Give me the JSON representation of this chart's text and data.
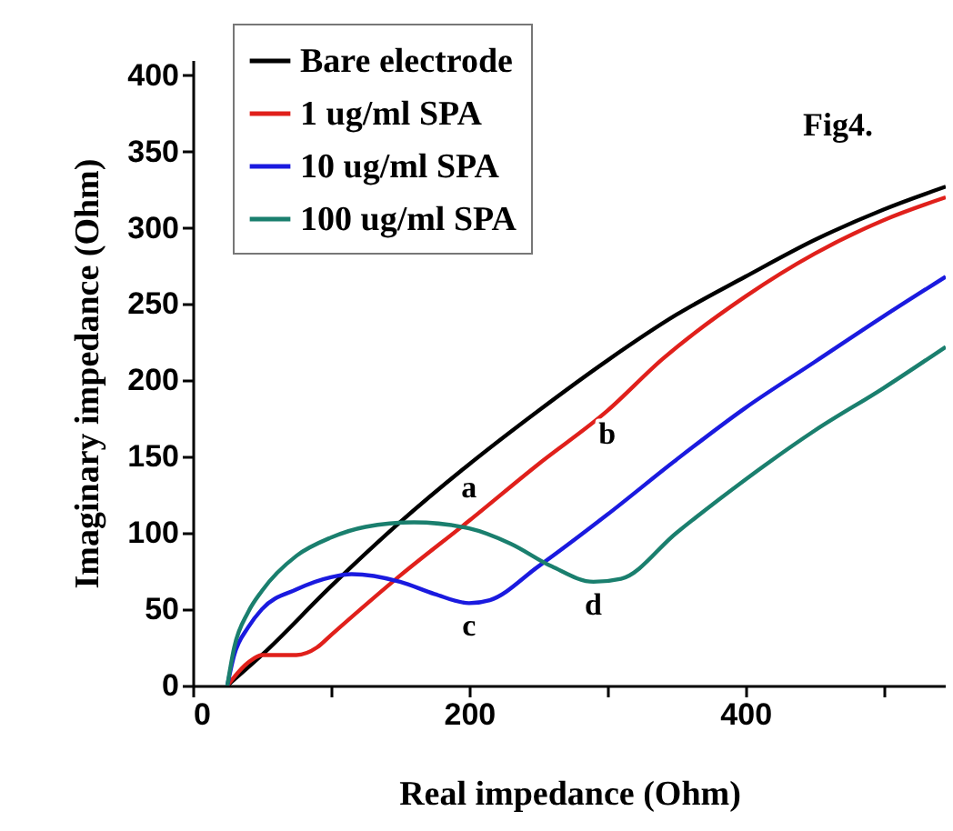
{
  "chart_data": {
    "type": "line",
    "xlabel": "Real impedance (Ohm)",
    "ylabel": "Imaginary impedance (Ohm)",
    "xlim": [
      0,
      545
    ],
    "ylim": [
      0,
      410
    ],
    "xticks": [
      0,
      {
        "value": 100,
        "label": null
      },
      200,
      {
        "value": 300,
        "label": null
      },
      400,
      {
        "value": 500,
        "label": null
      }
    ],
    "yticks": [
      0,
      50,
      100,
      150,
      200,
      250,
      300,
      350,
      400
    ],
    "legend": "top left",
    "grid": false,
    "line_style": "solid",
    "marker": "none",
    "annotations": [
      "Fig4.",
      {
        "text": "a",
        "x": 200,
        "y": 145
      },
      {
        "text": "b",
        "x": 300,
        "y": 180
      },
      {
        "text": "c",
        "x": 200,
        "y": 54
      },
      {
        "text": "d",
        "x": 290,
        "y": 68
      }
    ],
    "series": [
      {
        "name": "Bare electrode",
        "color": "#000000",
        "x": [
          25,
          50,
          100,
          150,
          200,
          250,
          300,
          350,
          400,
          450,
          500,
          545
        ],
        "values": [
          0,
          20,
          65,
          107,
          145,
          180,
          213,
          243,
          268,
          292,
          312,
          327
        ]
      },
      {
        "name": "1 ug/ml SPA",
        "color": "#e0201b",
        "x": [
          25,
          40,
          50,
          60,
          75,
          90,
          100,
          150,
          200,
          250,
          300,
          340,
          400,
          450,
          500,
          545
        ],
        "values": [
          0,
          15,
          20,
          20,
          20,
          25,
          33,
          72,
          108,
          145,
          180,
          214,
          255,
          283,
          305,
          320
        ]
      },
      {
        "name": "10 ug/ml SPA",
        "color": "#1a1adf",
        "x": [
          25,
          30,
          40,
          50,
          75,
          100,
          115,
          150,
          175,
          200,
          215,
          250,
          300,
          350,
          400,
          450,
          500,
          545
        ],
        "values": [
          0,
          20,
          38,
          50,
          63,
          71,
          73,
          68,
          60,
          54,
          56,
          78,
          112,
          148,
          182,
          212,
          242,
          268
        ]
      },
      {
        "name": "100 ug/ml SPA",
        "color": "#1a7f6e",
        "x": [
          25,
          30,
          40,
          50,
          75,
          100,
          125,
          160,
          200,
          230,
          260,
          290,
          310,
          350,
          400,
          450,
          500,
          545
        ],
        "values": [
          0,
          25,
          48,
          62,
          85,
          97,
          104,
          107,
          103,
          93,
          78,
          68,
          70,
          100,
          135,
          167,
          195,
          222
        ]
      }
    ]
  }
}
